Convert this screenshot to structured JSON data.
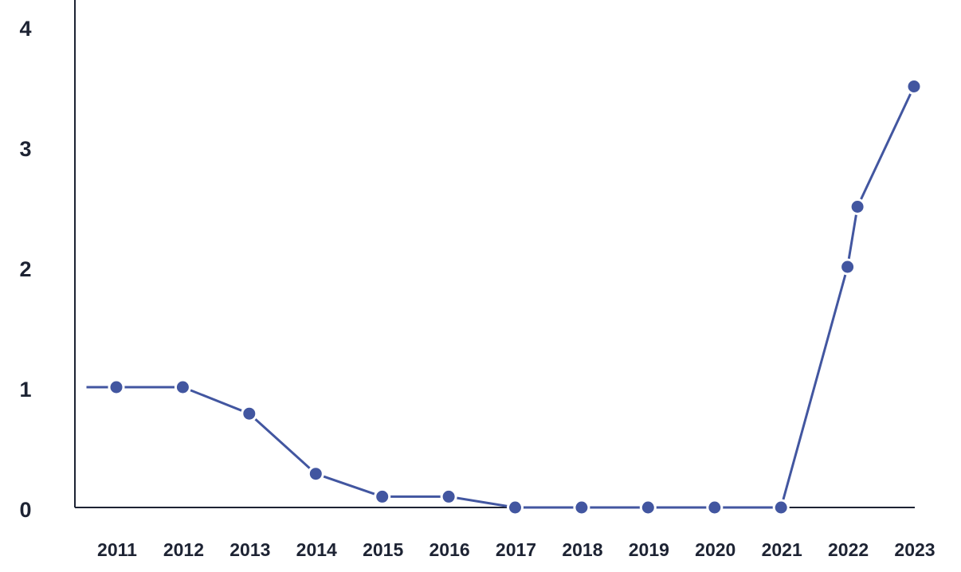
{
  "chart_data": {
    "type": "line",
    "title": "",
    "xlabel": "",
    "ylabel": "",
    "x_ticks": [
      "2011",
      "2012",
      "2013",
      "2014",
      "2015",
      "2016",
      "2017",
      "2018",
      "2019",
      "2020",
      "2021",
      "2022",
      "2023"
    ],
    "y_ticks": [
      "0",
      "1",
      "2",
      "3",
      "4"
    ],
    "ylim": [
      0,
      4
    ],
    "grid": false,
    "legend": "none",
    "series": [
      {
        "color": "#4256a0",
        "points": [
          {
            "x": 2010.55,
            "y": 1.0,
            "marker": false
          },
          {
            "x": 2011.0,
            "y": 1.0
          },
          {
            "x": 2012.0,
            "y": 1.0
          },
          {
            "x": 2013.0,
            "y": 0.78
          },
          {
            "x": 2014.0,
            "y": 0.28
          },
          {
            "x": 2015.0,
            "y": 0.09
          },
          {
            "x": 2016.0,
            "y": 0.09
          },
          {
            "x": 2017.0,
            "y": 0.0
          },
          {
            "x": 2018.0,
            "y": 0.0
          },
          {
            "x": 2019.0,
            "y": 0.0
          },
          {
            "x": 2020.0,
            "y": 0.0
          },
          {
            "x": 2021.0,
            "y": 0.0
          },
          {
            "x": 2022.0,
            "y": 2.0
          },
          {
            "x": 2022.15,
            "y": 2.5
          },
          {
            "x": 2023.0,
            "y": 3.5
          }
        ]
      }
    ]
  },
  "colors": {
    "axis": "#1d2333",
    "text": "#1d2333",
    "series": "#4256a0",
    "background": "#ffffff"
  }
}
